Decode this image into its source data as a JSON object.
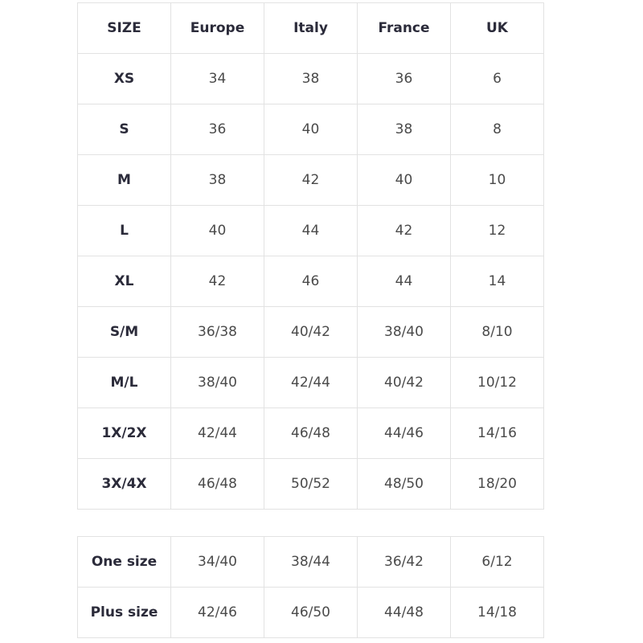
{
  "headers": [
    "SIZE",
    "Europe",
    "Italy",
    "France",
    "UK"
  ],
  "rows": [
    [
      "XS",
      "34",
      "38",
      "36",
      "6"
    ],
    [
      "S",
      "36",
      "40",
      "38",
      "8"
    ],
    [
      "M",
      "38",
      "42",
      "40",
      "10"
    ],
    [
      "L",
      "40",
      "44",
      "42",
      "12"
    ],
    [
      "XL",
      "42",
      "46",
      "44",
      "14"
    ],
    [
      "S/M",
      "36/38",
      "40/42",
      "38/40",
      "8/10"
    ],
    [
      "M/L",
      "38/40",
      "42/44",
      "40/42",
      "10/12"
    ],
    [
      "1X/2X",
      "42/44",
      "46/48",
      "44/46",
      "14/16"
    ],
    [
      "3X/4X",
      "46/48",
      "50/52",
      "48/50",
      "18/20"
    ]
  ],
  "extra_rows": [
    [
      "One size",
      "34/40",
      "38/44",
      "36/42",
      "6/12"
    ],
    [
      "Plus size",
      "42/46",
      "46/50",
      "44/48",
      "14/18"
    ]
  ]
}
